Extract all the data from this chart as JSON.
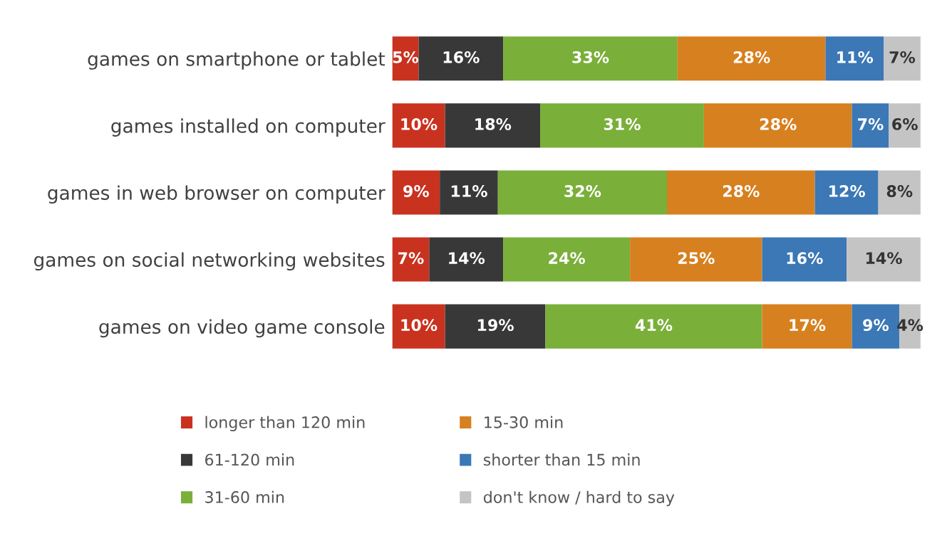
{
  "chart_data": {
    "type": "bar",
    "orientation": "horizontal",
    "stacked": true,
    "categories": [
      "games on smartphone or tablet",
      "games installed on computer",
      "games in web browser on computer",
      "games on social networking websites",
      "games on video game console"
    ],
    "series": [
      {
        "name": "longer than 120 min",
        "color": "#c9321f",
        "values": [
          5,
          10,
          9,
          7,
          10
        ],
        "value_labels": [
          "5%",
          "10%",
          "9%",
          "7%",
          "10%"
        ]
      },
      {
        "name": "61-120 min",
        "color": "#383838",
        "values": [
          16,
          18,
          11,
          14,
          19
        ],
        "value_labels": [
          "16%",
          "18%",
          "11%",
          "14%",
          "19%"
        ]
      },
      {
        "name": "31-60 min",
        "color": "#7aaf3a",
        "values": [
          33,
          31,
          32,
          24,
          41
        ],
        "value_labels": [
          "33%",
          "31%",
          "32%",
          "24%",
          "41%"
        ]
      },
      {
        "name": "15-30 min",
        "color": "#d7801f",
        "values": [
          28,
          28,
          28,
          25,
          17
        ],
        "value_labels": [
          "28%",
          "28%",
          "28%",
          "25%",
          "17%"
        ]
      },
      {
        "name": "shorter than 15 min",
        "color": "#3b78b5",
        "values": [
          11,
          7,
          12,
          16,
          9
        ],
        "value_labels": [
          "11%",
          "7%",
          "12%",
          "16%",
          "9%"
        ]
      },
      {
        "name": "don't know / hard to say",
        "color": "#c4c4c4",
        "values": [
          7,
          6,
          8,
          14,
          4
        ],
        "value_labels": [
          "7%",
          "6%",
          "8%",
          "14%",
          "4%"
        ]
      }
    ],
    "legend": "bottom",
    "grid": false,
    "tick_labels": "y"
  }
}
